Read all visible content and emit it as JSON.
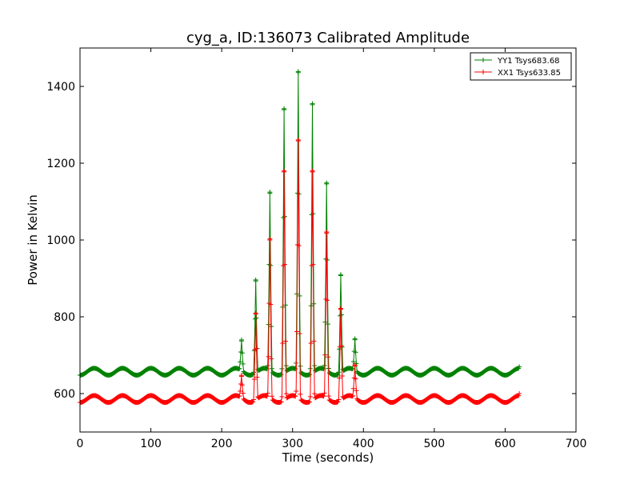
{
  "chart_data": {
    "type": "line",
    "title": "cyg_a, ID:136073 Calibrated Amplitude",
    "xlabel": "Time (seconds)",
    "ylabel": "Power in Kelvin",
    "xlim": [
      0,
      700
    ],
    "ylim": [
      500,
      1500
    ],
    "xticks": [
      "0",
      "100",
      "200",
      "300",
      "400",
      "500",
      "600",
      "700"
    ],
    "yticks": [
      "600",
      "800",
      "1000",
      "1200",
      "1400"
    ],
    "grid": false,
    "legend_position": "top-right",
    "marker": "+",
    "series": [
      {
        "name": "YY1 Tsys683.68",
        "color": "#008000",
        "baseline": 657,
        "ripple_amplitude": 9,
        "ripple_period_seconds": 40,
        "x_end": 620,
        "final_value": 670,
        "peaks": [
          {
            "x": 228,
            "y": 737
          },
          {
            "x": 248,
            "y": 896
          },
          {
            "x": 268,
            "y": 1122
          },
          {
            "x": 288,
            "y": 1342
          },
          {
            "x": 308,
            "y": 1436
          },
          {
            "x": 328,
            "y": 1355
          },
          {
            "x": 348,
            "y": 1146
          },
          {
            "x": 368,
            "y": 910
          },
          {
            "x": 388,
            "y": 740
          }
        ]
      },
      {
        "name": "XX1 Tsys633.85",
        "color": "#ff0000",
        "baseline": 586,
        "ripple_amplitude": 9,
        "ripple_period_seconds": 40,
        "x_end": 620,
        "final_value": 600,
        "peaks": [
          {
            "x": 228,
            "y": 645
          },
          {
            "x": 248,
            "y": 810
          },
          {
            "x": 268,
            "y": 1000
          },
          {
            "x": 288,
            "y": 1180
          },
          {
            "x": 308,
            "y": 1258
          },
          {
            "x": 328,
            "y": 1180
          },
          {
            "x": 348,
            "y": 1018
          },
          {
            "x": 368,
            "y": 822
          },
          {
            "x": 388,
            "y": 672
          }
        ]
      }
    ]
  }
}
